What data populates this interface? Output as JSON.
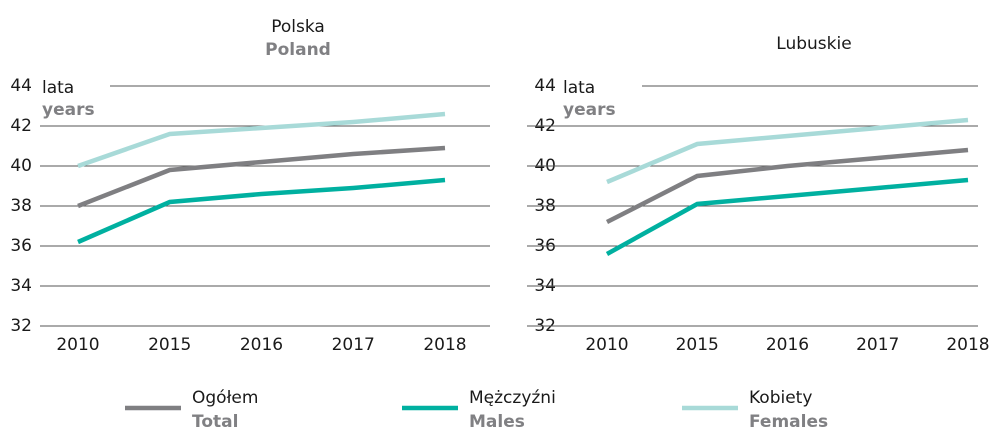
{
  "chart_data": [
    {
      "type": "line",
      "title": "Polska",
      "subtitle": "Poland",
      "y_label": "lata",
      "y_label_en": "years",
      "categories": [
        "2010",
        "2015",
        "2016",
        "2017",
        "2018"
      ],
      "series": [
        {
          "values": [
            38.0,
            39.8,
            40.2,
            40.6,
            40.9
          ]
        },
        {
          "values": [
            36.2,
            38.2,
            38.6,
            38.9,
            39.3
          ]
        },
        {
          "values": [
            40.0,
            41.6,
            41.9,
            42.2,
            42.6
          ]
        }
      ],
      "ylim": [
        32,
        44
      ],
      "yticks": [
        32,
        34,
        36,
        38,
        40,
        42,
        44
      ],
      "grid": true
    },
    {
      "type": "line",
      "title": "Lubuskie",
      "y_label": "lata",
      "y_label_en": "years",
      "categories": [
        "2010",
        "2015",
        "2016",
        "2017",
        "2018"
      ],
      "series": [
        {
          "values": [
            37.2,
            39.5,
            40.0,
            40.4,
            40.8
          ]
        },
        {
          "values": [
            35.6,
            38.1,
            38.5,
            38.9,
            39.3
          ]
        },
        {
          "values": [
            39.2,
            41.1,
            41.5,
            41.9,
            42.3
          ]
        }
      ],
      "ylim": [
        32,
        44
      ],
      "yticks": [
        32,
        34,
        36,
        38,
        40,
        42,
        44
      ],
      "grid": true
    }
  ],
  "legend": [
    {
      "name": "Ogółem",
      "name_en": "Total",
      "color": "#7f7f82"
    },
    {
      "name": "Mężczyźni",
      "name_en": "Males",
      "color": "#00b0a0"
    },
    {
      "name": "Kobiety",
      "name_en": "Females",
      "color": "#a8dad8"
    }
  ]
}
